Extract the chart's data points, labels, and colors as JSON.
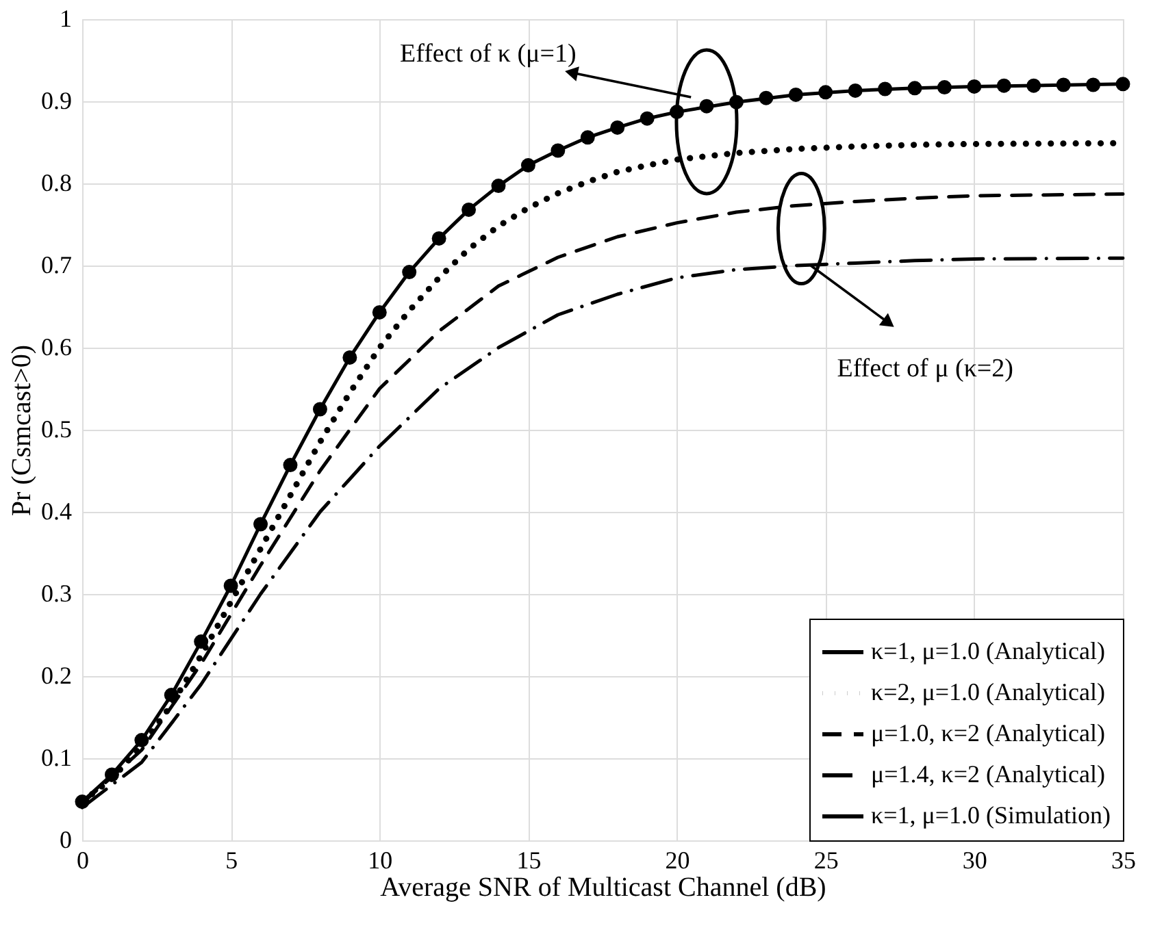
{
  "chart_data": {
    "type": "line",
    "xlabel": "Average SNR of Multicast Channel (dB)",
    "ylabel": "Pr (Csmcast>0)",
    "xlim": [
      0,
      35
    ],
    "xticks": [
      0,
      5,
      10,
      15,
      20,
      25,
      30,
      35
    ],
    "ylim": [
      0,
      1
    ],
    "yticks": [
      0,
      0.1,
      0.2,
      0.3,
      0.4,
      0.5,
      0.6,
      0.7,
      0.8,
      0.9,
      1
    ],
    "grid": true,
    "legend": "bottom right",
    "annotations": [
      "Effect of κ (μ=1)",
      "Effect of μ (κ=2)"
    ],
    "series": [
      {
        "name": "κ=1, μ=1.0 (Analytical)",
        "color": "#000000",
        "line_style": "solid",
        "x": [
          0,
          1,
          2,
          3,
          4,
          5,
          6,
          7,
          8,
          9,
          10,
          11,
          12,
          13,
          14,
          15,
          16,
          17,
          18,
          19,
          20,
          22,
          24,
          26,
          28,
          30,
          35
        ],
        "values": [
          0.047,
          0.08,
          0.122,
          0.177,
          0.242,
          0.31,
          0.385,
          0.457,
          0.525,
          0.588,
          0.643,
          0.692,
          0.733,
          0.768,
          0.797,
          0.822,
          0.84,
          0.856,
          0.868,
          0.879,
          0.887,
          0.899,
          0.908,
          0.913,
          0.916,
          0.918,
          0.921
        ]
      },
      {
        "name": "κ=2, μ=1.0 (Analytical)",
        "color": "#000000",
        "line_style": "dotted",
        "marker": "none",
        "x": [
          0,
          1,
          2,
          3,
          4,
          5,
          6,
          7,
          8,
          9,
          10,
          11,
          12,
          13,
          14,
          15,
          16,
          17,
          18,
          19,
          20,
          22,
          24,
          26,
          28,
          30,
          35
        ],
        "values": [
          0.047,
          0.075,
          0.115,
          0.165,
          0.225,
          0.29,
          0.355,
          0.42,
          0.485,
          0.545,
          0.6,
          0.645,
          0.685,
          0.72,
          0.748,
          0.77,
          0.788,
          0.802,
          0.814,
          0.822,
          0.829,
          0.837,
          0.842,
          0.845,
          0.847,
          0.848,
          0.849
        ]
      },
      {
        "name": "μ=1.0, κ=2 (Analytical)",
        "color": "#000000",
        "line_style": "dashed",
        "marker": "none",
        "x": [
          0,
          2,
          4,
          6,
          8,
          10,
          12,
          14,
          16,
          18,
          20,
          22,
          24,
          26,
          28,
          30,
          35
        ],
        "values": [
          0.045,
          0.11,
          0.215,
          0.335,
          0.45,
          0.55,
          0.62,
          0.675,
          0.71,
          0.735,
          0.752,
          0.765,
          0.773,
          0.778,
          0.782,
          0.785,
          0.787
        ]
      },
      {
        "name": "μ=1.4, κ=2 (Analytical)",
        "color": "#000000",
        "line_style": "dashdot",
        "marker": "none",
        "x": [
          0,
          2,
          4,
          6,
          8,
          10,
          12,
          14,
          16,
          18,
          20,
          22,
          24,
          26,
          28,
          30,
          35
        ],
        "values": [
          0.04,
          0.095,
          0.19,
          0.3,
          0.4,
          0.48,
          0.55,
          0.6,
          0.64,
          0.665,
          0.685,
          0.695,
          0.7,
          0.703,
          0.706,
          0.708,
          0.709
        ]
      },
      {
        "name": "κ=1, μ=1.0 (Simulation)",
        "type": "scatter",
        "color": "#000000",
        "marker": "circle",
        "x": [
          0,
          1,
          2,
          3,
          4,
          5,
          6,
          7,
          8,
          9,
          10,
          11,
          12,
          13,
          14,
          15,
          16,
          17,
          18,
          19,
          20,
          21,
          22,
          23,
          24,
          25,
          26,
          27,
          28,
          29,
          30,
          31,
          32,
          33,
          34,
          35
        ],
        "values": [
          0.047,
          0.08,
          0.122,
          0.177,
          0.242,
          0.31,
          0.385,
          0.457,
          0.525,
          0.588,
          0.643,
          0.692,
          0.733,
          0.768,
          0.797,
          0.822,
          0.84,
          0.856,
          0.868,
          0.879,
          0.887,
          0.894,
          0.899,
          0.904,
          0.908,
          0.911,
          0.913,
          0.915,
          0.916,
          0.917,
          0.918,
          0.919,
          0.919,
          0.92,
          0.92,
          0.921
        ]
      }
    ]
  }
}
